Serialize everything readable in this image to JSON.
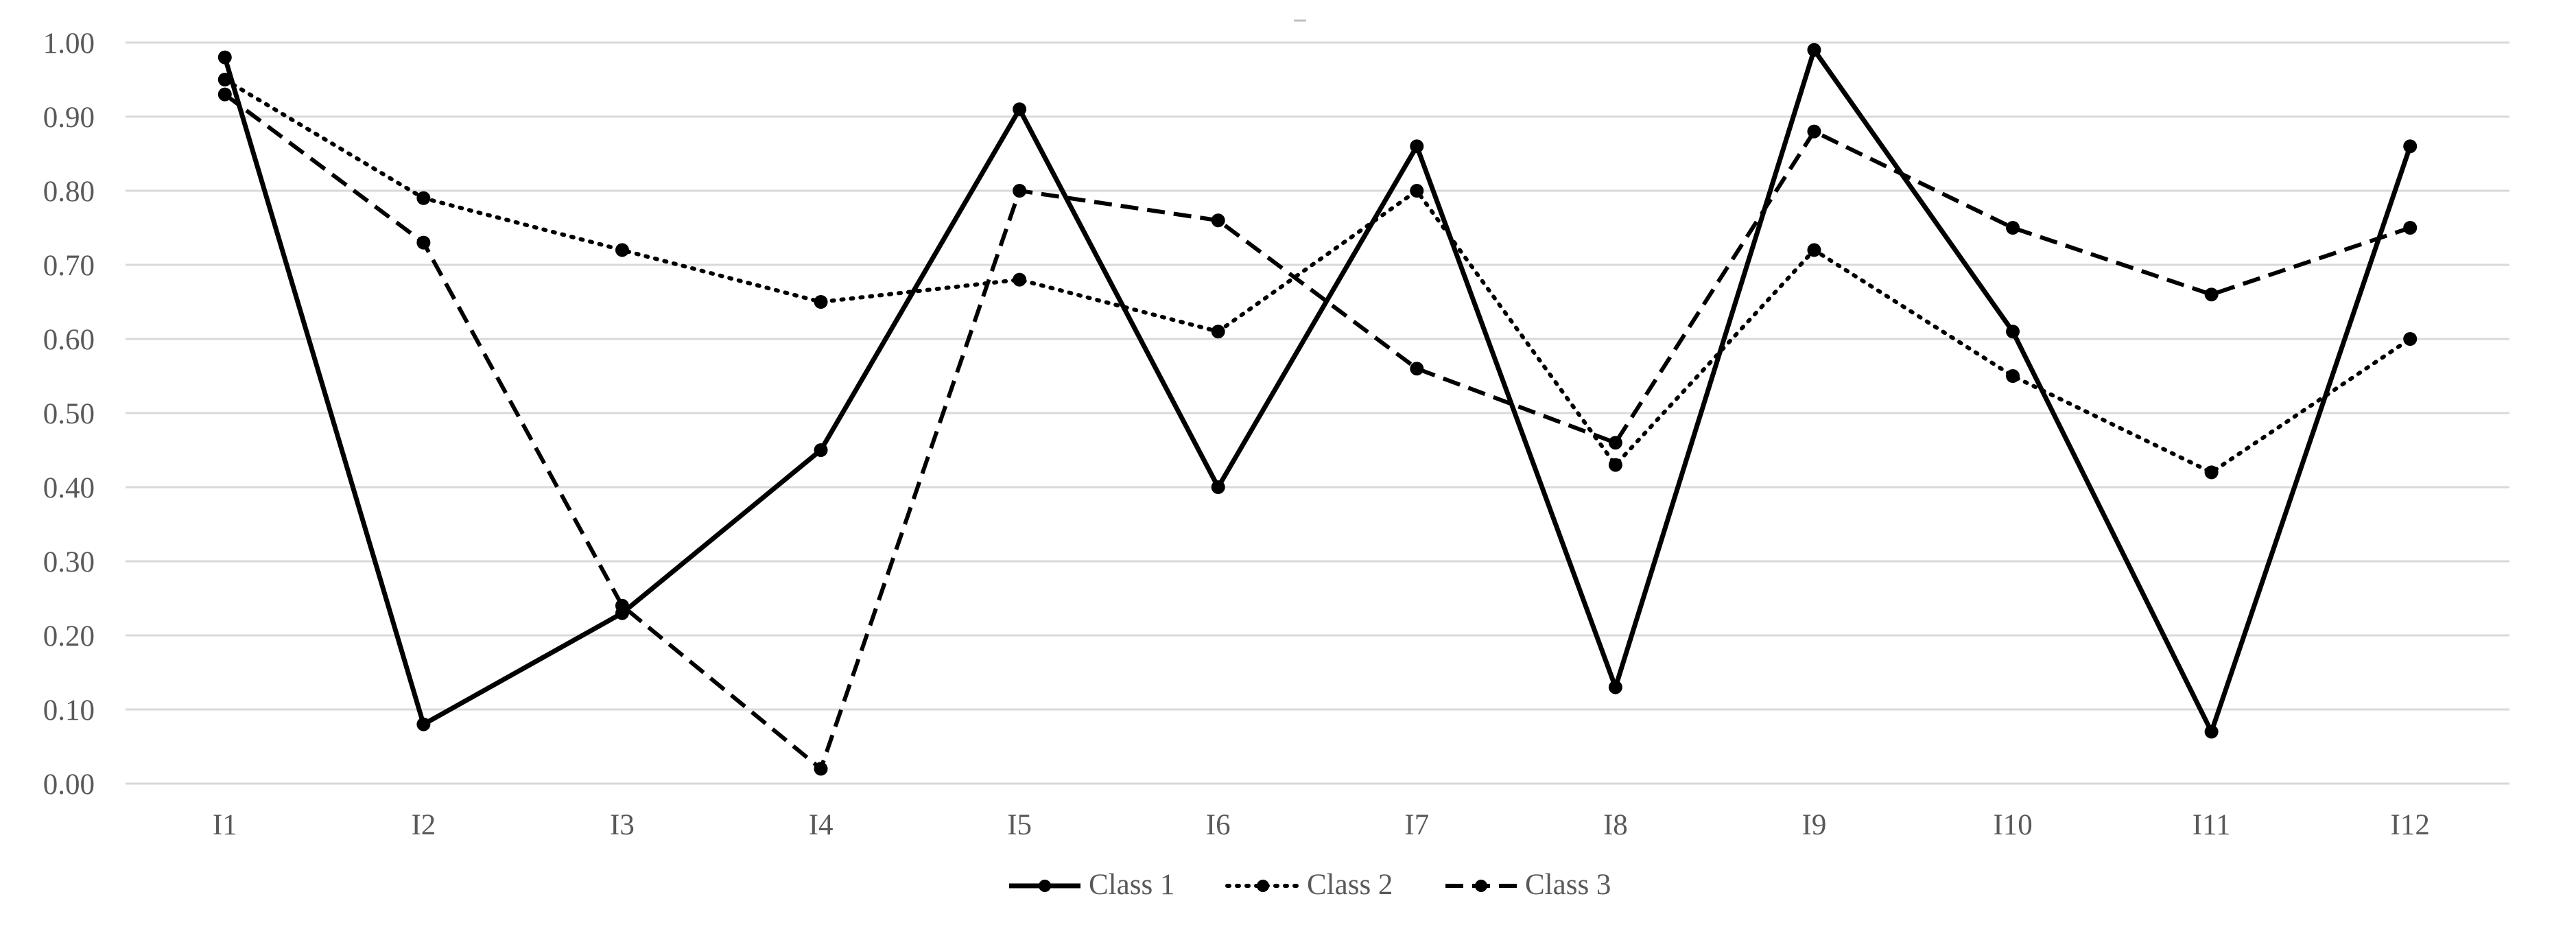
{
  "chart_data": {
    "type": "line",
    "title": "",
    "xlabel": "",
    "ylabel": "",
    "categories": [
      "I1",
      "I2",
      "I3",
      "I4",
      "I5",
      "I6",
      "I7",
      "I8",
      "I9",
      "I10",
      "I11",
      "I12"
    ],
    "ylim": [
      0,
      1
    ],
    "yticks": [
      "0.00",
      "0.10",
      "0.20",
      "0.30",
      "0.40",
      "0.50",
      "0.60",
      "0.70",
      "0.80",
      "0.90",
      "1.00"
    ],
    "grid": true,
    "legend": "bottom",
    "series": [
      {
        "name": "Class 1",
        "style": "solid",
        "color": "#000000",
        "values": [
          0.98,
          0.08,
          0.23,
          0.45,
          0.91,
          0.4,
          0.86,
          0.13,
          0.99,
          0.61,
          0.07,
          0.86
        ]
      },
      {
        "name": "Class 2",
        "style": "dotted",
        "color": "#000000",
        "values": [
          0.95,
          0.79,
          0.72,
          0.65,
          0.68,
          0.61,
          0.8,
          0.43,
          0.72,
          0.55,
          0.42,
          0.6
        ]
      },
      {
        "name": "Class 3",
        "style": "dashed",
        "color": "#000000",
        "values": [
          0.93,
          0.73,
          0.24,
          0.02,
          0.8,
          0.76,
          0.56,
          0.46,
          0.88,
          0.75,
          0.66,
          0.75
        ]
      }
    ]
  }
}
